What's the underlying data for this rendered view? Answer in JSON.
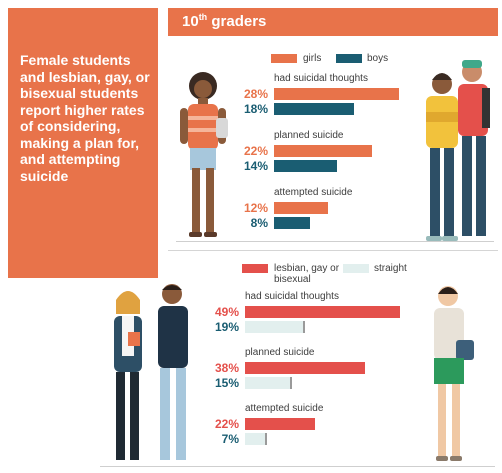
{
  "headline": "Female students and lesbian, gay, or bisexual students report higher rates of considering, making a plan for, and attempting suicide",
  "grade": {
    "number": "10",
    "suffix": "th",
    "word": " graders"
  },
  "colors": {
    "orange": "#e8734a",
    "teal": "#1a5d72",
    "red": "#e4504b",
    "light": "#e2efee"
  },
  "chart_data": [
    {
      "type": "bar",
      "orientation": "horizontal",
      "legend": [
        "girls",
        "boys"
      ],
      "categories": [
        "had suicidal thoughts",
        "planned suicide",
        "attempted suicide"
      ],
      "series": [
        {
          "name": "girls",
          "values": [
            28,
            22,
            12
          ],
          "labels": [
            "28%",
            "22%",
            "12%"
          ],
          "color": "#e8734a"
        },
        {
          "name": "boys",
          "values": [
            18,
            14,
            8
          ],
          "labels": [
            "18%",
            "14%",
            "8%"
          ],
          "color": "#1a5d72"
        }
      ]
    },
    {
      "type": "bar",
      "orientation": "horizontal",
      "legend": [
        "lesbian, gay or bisexual",
        "straight"
      ],
      "categories": [
        "had suicidal thoughts",
        "planned suicide",
        "attempted suicide"
      ],
      "series": [
        {
          "name": "lesbian, gay or bisexual",
          "values": [
            49,
            38,
            22
          ],
          "labels": [
            "49%",
            "38%",
            "22%"
          ],
          "color": "#e4504b"
        },
        {
          "name": "straight",
          "values": [
            19,
            15,
            7
          ],
          "labels": [
            "19%",
            "15%",
            "7%"
          ],
          "color": "#e2efee"
        }
      ]
    }
  ]
}
